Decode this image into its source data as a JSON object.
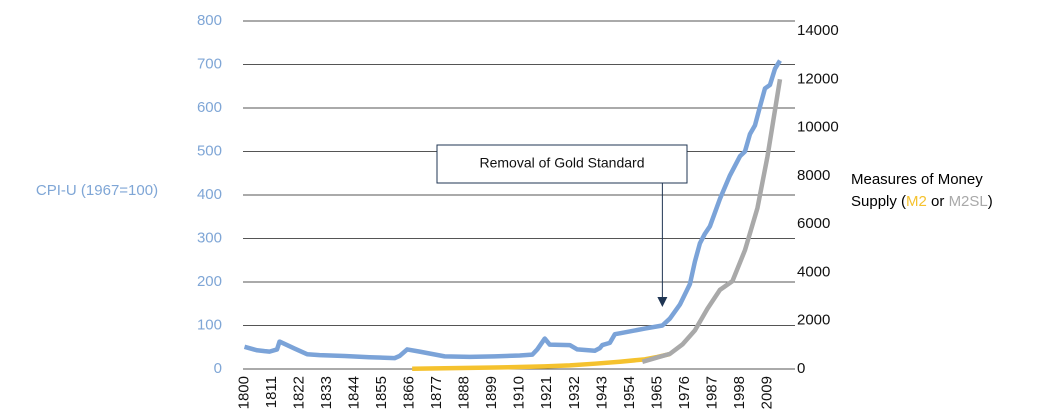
{
  "chart_data": {
    "type": "line",
    "ylabel": "CPI-U (1967=100)",
    "y2label_parts": [
      "Measures of Money",
      "Supply (",
      " or ",
      ")"
    ],
    "annotation": "Removal of Gold Standard",
    "annotation_x": 1967,
    "xlim": [
      1797,
      2024
    ],
    "xticks": [
      1800,
      1811,
      1822,
      1833,
      1844,
      1855,
      1866,
      1877,
      1888,
      1899,
      1910,
      1921,
      1932,
      1943,
      1954,
      1965,
      1976,
      1987,
      1998,
      2009
    ],
    "ylim": [
      0,
      800
    ],
    "yticks": [
      0,
      100,
      200,
      300,
      400,
      500,
      600,
      700,
      800
    ],
    "y2lim": [
      0,
      14000
    ],
    "y2ticks": [
      0,
      2000,
      4000,
      6000,
      8000,
      10000,
      12000,
      14000
    ],
    "grid": true,
    "ylabel_color": "#7fa6d6",
    "series": [
      {
        "name": "CPI-U",
        "color": "#7ba3d8",
        "x": [
          1800,
          1805,
          1808,
          1810,
          1813,
          1814,
          1820,
          1825,
          1830,
          1840,
          1850,
          1860,
          1862,
          1865,
          1870,
          1880,
          1890,
          1900,
          1910,
          1915,
          1917,
          1920,
          1922,
          1930,
          1933,
          1940,
          1942,
          1943,
          1946,
          1948,
          1950,
          1960,
          1967,
          1970,
          1974,
          1978,
          1980,
          1982,
          1984,
          1986,
          1990,
          1994,
          1998,
          2000,
          2002,
          2004,
          2006,
          2008,
          2010,
          2012,
          2014
        ],
        "values": [
          51,
          43,
          41,
          40,
          45,
          63,
          47,
          34,
          32,
          30,
          27,
          25,
          30,
          45,
          40,
          29,
          28,
          29,
          31,
          33,
          45,
          70,
          56,
          55,
          45,
          42,
          48,
          55,
          60,
          80,
          82,
          93,
          100,
          116,
          148,
          195,
          247,
          289,
          311,
          328,
          391,
          445,
          489,
          500,
          540,
          560,
          603,
          645,
          653,
          690,
          709
        ]
      },
      {
        "name": "M2",
        "color": "#f5c22e",
        "axis": "y2",
        "x": [
          1867,
          1880,
          1900,
          1920,
          1930,
          1940,
          1950,
          1960,
          1965,
          1970
        ],
        "values": [
          10,
          30,
          60,
          110,
          150,
          220,
          300,
          400,
          500,
          620
        ]
      },
      {
        "name": "M2SL",
        "color": "#a9a9a9",
        "axis": "y2",
        "x": [
          1959,
          1965,
          1970,
          1975,
          1980,
          1985,
          1990,
          1995,
          2000,
          2005,
          2009,
          2014
        ],
        "values": [
          297,
          480,
          626,
          1016,
          1600,
          2494,
          3277,
          3640,
          4920,
          6670,
          8800,
          12000
        ]
      }
    ]
  }
}
